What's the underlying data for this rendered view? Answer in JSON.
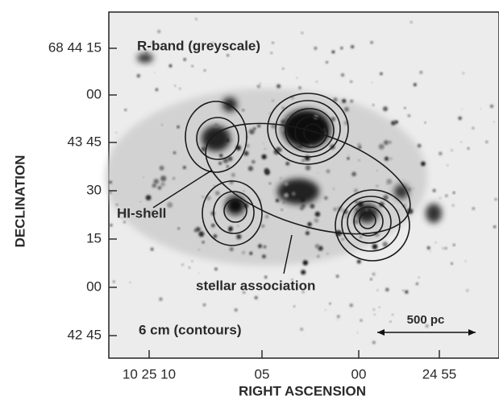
{
  "figure": {
    "annotations": {
      "r_band": "R-band (greyscale)",
      "hi_shell": "HI-shell",
      "stellar": "stellar association",
      "contours": "6 cm (contours)",
      "scale": "500 pc"
    },
    "y_axis": {
      "label": "DECLINATION",
      "ticks": [
        "68 44 15",
        "00",
        "43 45",
        "30",
        "15",
        "00",
        "42 45"
      ]
    },
    "x_axis": {
      "label": "RIGHT ASCENSION",
      "ticks": [
        "10 25 10",
        "05",
        "00",
        "24 55"
      ]
    }
  }
}
